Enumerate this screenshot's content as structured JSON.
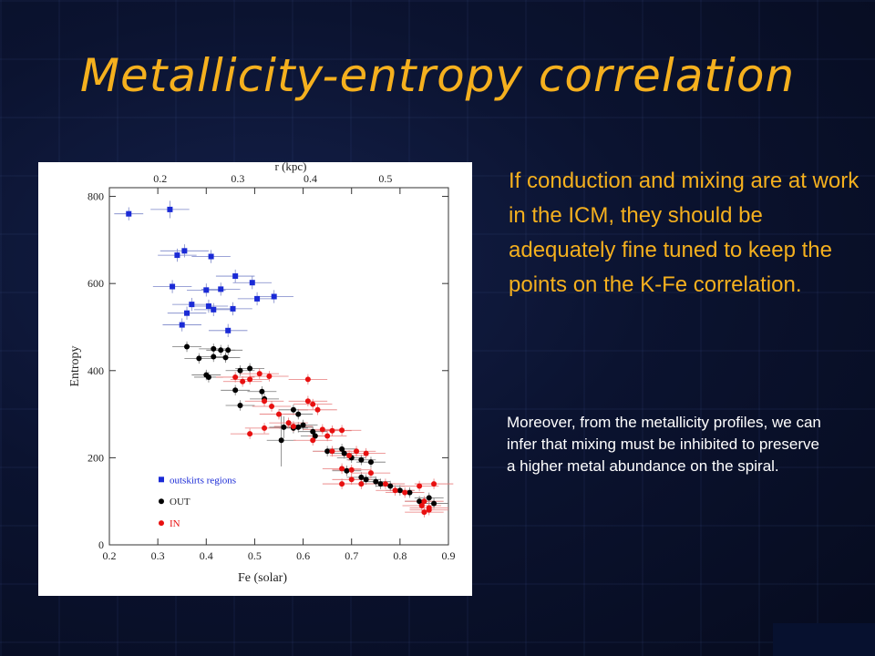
{
  "slide": {
    "title": "Metallicity-entropy correlation",
    "paragraph_main": "If conduction and mixing are at work in the ICM, they should be adequately fine tuned to keep the points on the K-Fe correlation.",
    "paragraph_sub": "Moreover, from the metallicity profiles, we can infer that mixing must be inhibited to preserve a higher metal abundance on the spiral.",
    "colors": {
      "title": "#f5b01e",
      "main_text": "#f5b01e",
      "sub_text": "#ffffff"
    }
  },
  "chart_data": {
    "type": "scatter",
    "title": "",
    "xlabel": "Fe (solar)",
    "ylabel": "Entropy",
    "x2label": "r (kpc)",
    "xlim": [
      0.2,
      0.9
    ],
    "ylim": [
      0,
      820
    ],
    "x_ticks": [
      "0.2",
      "0.3",
      "0.4",
      "0.5",
      "0.6",
      "0.7",
      "0.8",
      "0.9"
    ],
    "y_ticks": [
      "0",
      "200",
      "400",
      "600",
      "800"
    ],
    "x2_ticks": [
      {
        "label": "0.2",
        "fe": 0.305
      },
      {
        "label": "0.3",
        "fe": 0.465
      },
      {
        "label": "0.4",
        "fe": 0.615
      },
      {
        "label": "0.5",
        "fe": 0.77
      }
    ],
    "legend": {
      "placement": "bottom-left"
    },
    "series": [
      {
        "name": "outskirts regions",
        "marker": "square",
        "color": "#1a2ad6",
        "points": [
          {
            "x": 0.24,
            "y": 760,
            "xerr": 0.03,
            "yerr": 15
          },
          {
            "x": 0.325,
            "y": 770,
            "xerr": 0.04,
            "yerr": 20
          },
          {
            "x": 0.355,
            "y": 675,
            "xerr": 0.05,
            "yerr": 15
          },
          {
            "x": 0.34,
            "y": 665,
            "xerr": 0.04,
            "yerr": 15
          },
          {
            "x": 0.41,
            "y": 662,
            "xerr": 0.04,
            "yerr": 15
          },
          {
            "x": 0.33,
            "y": 593,
            "xerr": 0.04,
            "yerr": 15
          },
          {
            "x": 0.4,
            "y": 585,
            "xerr": 0.04,
            "yerr": 15
          },
          {
            "x": 0.43,
            "y": 587,
            "xerr": 0.04,
            "yerr": 15
          },
          {
            "x": 0.46,
            "y": 617,
            "xerr": 0.04,
            "yerr": 15
          },
          {
            "x": 0.495,
            "y": 602,
            "xerr": 0.04,
            "yerr": 15
          },
          {
            "x": 0.505,
            "y": 565,
            "xerr": 0.04,
            "yerr": 15
          },
          {
            "x": 0.54,
            "y": 570,
            "xerr": 0.04,
            "yerr": 15
          },
          {
            "x": 0.37,
            "y": 552,
            "xerr": 0.04,
            "yerr": 15
          },
          {
            "x": 0.405,
            "y": 548,
            "xerr": 0.04,
            "yerr": 15
          },
          {
            "x": 0.415,
            "y": 540,
            "xerr": 0.04,
            "yerr": 15
          },
          {
            "x": 0.455,
            "y": 542,
            "xerr": 0.04,
            "yerr": 15
          },
          {
            "x": 0.36,
            "y": 532,
            "xerr": 0.04,
            "yerr": 15
          },
          {
            "x": 0.35,
            "y": 505,
            "xerr": 0.04,
            "yerr": 15
          },
          {
            "x": 0.445,
            "y": 492,
            "xerr": 0.04,
            "yerr": 15
          }
        ]
      },
      {
        "name": "OUT",
        "marker": "circle",
        "color": "#000000",
        "points": [
          {
            "x": 0.36,
            "y": 455,
            "xerr": 0.03,
            "yerr": 12
          },
          {
            "x": 0.385,
            "y": 428,
            "xerr": 0.03,
            "yerr": 12
          },
          {
            "x": 0.415,
            "y": 450,
            "xerr": 0.03,
            "yerr": 12
          },
          {
            "x": 0.43,
            "y": 447,
            "xerr": 0.03,
            "yerr": 12
          },
          {
            "x": 0.445,
            "y": 447,
            "xerr": 0.03,
            "yerr": 12
          },
          {
            "x": 0.415,
            "y": 432,
            "xerr": 0.03,
            "yerr": 12
          },
          {
            "x": 0.44,
            "y": 430,
            "xerr": 0.03,
            "yerr": 12
          },
          {
            "x": 0.4,
            "y": 390,
            "xerr": 0.03,
            "yerr": 12
          },
          {
            "x": 0.405,
            "y": 385,
            "xerr": 0.03,
            "yerr": 12
          },
          {
            "x": 0.47,
            "y": 400,
            "xerr": 0.03,
            "yerr": 12
          },
          {
            "x": 0.49,
            "y": 405,
            "xerr": 0.03,
            "yerr": 12
          },
          {
            "x": 0.46,
            "y": 355,
            "xerr": 0.03,
            "yerr": 12
          },
          {
            "x": 0.47,
            "y": 320,
            "xerr": 0.03,
            "yerr": 12
          },
          {
            "x": 0.515,
            "y": 352,
            "xerr": 0.03,
            "yerr": 12
          },
          {
            "x": 0.52,
            "y": 335,
            "xerr": 0.03,
            "yerr": 12
          },
          {
            "x": 0.56,
            "y": 270,
            "xerr": 0.03,
            "yerr": 25
          },
          {
            "x": 0.58,
            "y": 310,
            "xerr": 0.03,
            "yerr": 12
          },
          {
            "x": 0.59,
            "y": 300,
            "xerr": 0.03,
            "yerr": 12
          },
          {
            "x": 0.6,
            "y": 275,
            "xerr": 0.03,
            "yerr": 12
          },
          {
            "x": 0.58,
            "y": 268,
            "xerr": 0.03,
            "yerr": 12
          },
          {
            "x": 0.62,
            "y": 260,
            "xerr": 0.03,
            "yerr": 12
          },
          {
            "x": 0.59,
            "y": 270,
            "xerr": 0.03,
            "yerr": 12
          },
          {
            "x": 0.625,
            "y": 250,
            "xerr": 0.03,
            "yerr": 12
          },
          {
            "x": 0.555,
            "y": 240,
            "xerr": 0.03,
            "yerr": 60
          },
          {
            "x": 0.65,
            "y": 215,
            "xerr": 0.03,
            "yerr": 12
          },
          {
            "x": 0.68,
            "y": 220,
            "xerr": 0.03,
            "yerr": 12
          },
          {
            "x": 0.685,
            "y": 210,
            "xerr": 0.03,
            "yerr": 12
          },
          {
            "x": 0.7,
            "y": 200,
            "xerr": 0.03,
            "yerr": 12
          },
          {
            "x": 0.72,
            "y": 195,
            "xerr": 0.03,
            "yerr": 12
          },
          {
            "x": 0.74,
            "y": 190,
            "xerr": 0.03,
            "yerr": 12
          },
          {
            "x": 0.69,
            "y": 170,
            "xerr": 0.03,
            "yerr": 12
          },
          {
            "x": 0.72,
            "y": 155,
            "xerr": 0.03,
            "yerr": 12
          },
          {
            "x": 0.73,
            "y": 150,
            "xerr": 0.03,
            "yerr": 12
          },
          {
            "x": 0.75,
            "y": 145,
            "xerr": 0.03,
            "yerr": 12
          },
          {
            "x": 0.76,
            "y": 140,
            "xerr": 0.03,
            "yerr": 12
          },
          {
            "x": 0.78,
            "y": 135,
            "xerr": 0.03,
            "yerr": 12
          },
          {
            "x": 0.8,
            "y": 125,
            "xerr": 0.03,
            "yerr": 12
          },
          {
            "x": 0.82,
            "y": 120,
            "xerr": 0.03,
            "yerr": 12
          },
          {
            "x": 0.84,
            "y": 100,
            "xerr": 0.03,
            "yerr": 12
          },
          {
            "x": 0.86,
            "y": 108,
            "xerr": 0.03,
            "yerr": 12
          },
          {
            "x": 0.87,
            "y": 95,
            "xerr": 0.03,
            "yerr": 12
          }
        ]
      },
      {
        "name": "IN",
        "marker": "circle",
        "color": "#e81010",
        "points": [
          {
            "x": 0.46,
            "y": 385,
            "xerr": 0.04,
            "yerr": 12
          },
          {
            "x": 0.475,
            "y": 375,
            "xerr": 0.04,
            "yerr": 12
          },
          {
            "x": 0.49,
            "y": 380,
            "xerr": 0.04,
            "yerr": 12
          },
          {
            "x": 0.51,
            "y": 393,
            "xerr": 0.04,
            "yerr": 12
          },
          {
            "x": 0.53,
            "y": 387,
            "xerr": 0.04,
            "yerr": 12
          },
          {
            "x": 0.52,
            "y": 330,
            "xerr": 0.04,
            "yerr": 12
          },
          {
            "x": 0.535,
            "y": 318,
            "xerr": 0.04,
            "yerr": 12
          },
          {
            "x": 0.61,
            "y": 380,
            "xerr": 0.04,
            "yerr": 12
          },
          {
            "x": 0.61,
            "y": 330,
            "xerr": 0.04,
            "yerr": 12
          },
          {
            "x": 0.62,
            "y": 323,
            "xerr": 0.04,
            "yerr": 12
          },
          {
            "x": 0.63,
            "y": 310,
            "xerr": 0.04,
            "yerr": 12
          },
          {
            "x": 0.55,
            "y": 300,
            "xerr": 0.04,
            "yerr": 12
          },
          {
            "x": 0.57,
            "y": 280,
            "xerr": 0.04,
            "yerr": 12
          },
          {
            "x": 0.58,
            "y": 272,
            "xerr": 0.04,
            "yerr": 12
          },
          {
            "x": 0.52,
            "y": 268,
            "xerr": 0.04,
            "yerr": 12
          },
          {
            "x": 0.49,
            "y": 255,
            "xerr": 0.04,
            "yerr": 12
          },
          {
            "x": 0.64,
            "y": 265,
            "xerr": 0.04,
            "yerr": 12
          },
          {
            "x": 0.66,
            "y": 262,
            "xerr": 0.04,
            "yerr": 12
          },
          {
            "x": 0.68,
            "y": 263,
            "xerr": 0.04,
            "yerr": 12
          },
          {
            "x": 0.62,
            "y": 240,
            "xerr": 0.04,
            "yerr": 12
          },
          {
            "x": 0.65,
            "y": 250,
            "xerr": 0.04,
            "yerr": 12
          },
          {
            "x": 0.66,
            "y": 215,
            "xerr": 0.04,
            "yerr": 12
          },
          {
            "x": 0.695,
            "y": 205,
            "xerr": 0.04,
            "yerr": 12
          },
          {
            "x": 0.71,
            "y": 215,
            "xerr": 0.04,
            "yerr": 12
          },
          {
            "x": 0.73,
            "y": 210,
            "xerr": 0.04,
            "yerr": 12
          },
          {
            "x": 0.68,
            "y": 175,
            "xerr": 0.04,
            "yerr": 12
          },
          {
            "x": 0.7,
            "y": 172,
            "xerr": 0.04,
            "yerr": 12
          },
          {
            "x": 0.74,
            "y": 165,
            "xerr": 0.04,
            "yerr": 12
          },
          {
            "x": 0.68,
            "y": 140,
            "xerr": 0.04,
            "yerr": 12
          },
          {
            "x": 0.7,
            "y": 150,
            "xerr": 0.04,
            "yerr": 12
          },
          {
            "x": 0.72,
            "y": 140,
            "xerr": 0.04,
            "yerr": 12
          },
          {
            "x": 0.77,
            "y": 140,
            "xerr": 0.04,
            "yerr": 12
          },
          {
            "x": 0.79,
            "y": 125,
            "xerr": 0.04,
            "yerr": 12
          },
          {
            "x": 0.81,
            "y": 120,
            "xerr": 0.04,
            "yerr": 12
          },
          {
            "x": 0.84,
            "y": 135,
            "xerr": 0.04,
            "yerr": 12
          },
          {
            "x": 0.85,
            "y": 100,
            "xerr": 0.04,
            "yerr": 12
          },
          {
            "x": 0.86,
            "y": 85,
            "xerr": 0.04,
            "yerr": 12
          },
          {
            "x": 0.85,
            "y": 75,
            "xerr": 0.04,
            "yerr": 12
          },
          {
            "x": 0.86,
            "y": 80,
            "xerr": 0.04,
            "yerr": 12
          },
          {
            "x": 0.845,
            "y": 90,
            "xerr": 0.04,
            "yerr": 12
          },
          {
            "x": 0.87,
            "y": 140,
            "xerr": 0.04,
            "yerr": 12
          }
        ]
      }
    ]
  }
}
